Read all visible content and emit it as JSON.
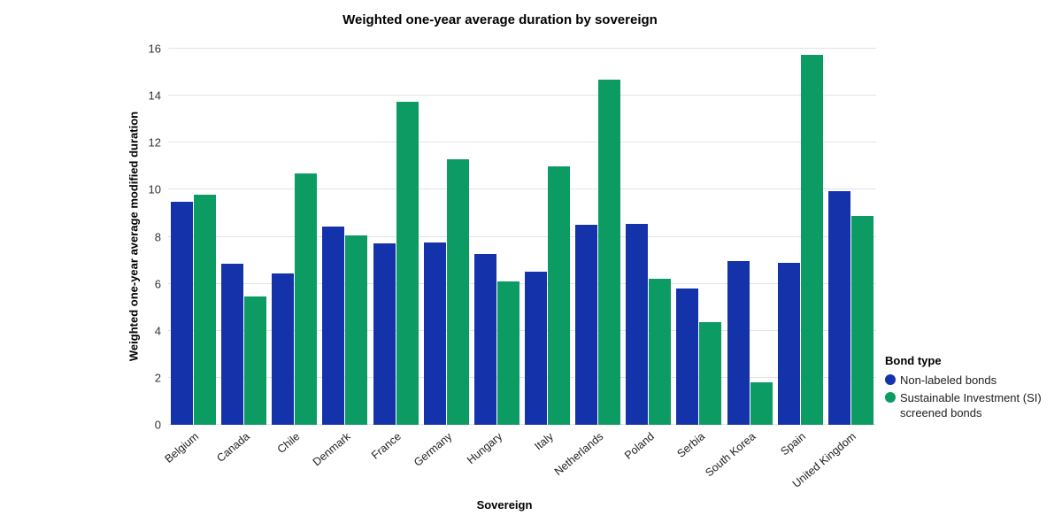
{
  "title": "Weighted one-year average duration by sovereign",
  "legend": {
    "title": "Bond type"
  },
  "colors": {
    "non_labeled_blue": "#1433aa",
    "si_screened_green": "#0c9b62",
    "gridline": "#e2e2e2",
    "text": "#212121"
  },
  "chart_data": {
    "type": "bar",
    "title": "Weighted one-year average duration by sovereign",
    "xlabel": "Sovereign",
    "ylabel": "Weighted one-year average modified duration",
    "ylim": [
      0,
      16
    ],
    "yticks": [
      0,
      2,
      4,
      6,
      8,
      10,
      12,
      14,
      16
    ],
    "grid": true,
    "legend_position": "right",
    "legend_title": "Bond type",
    "categories": [
      "Belgium",
      "Canada",
      "Chile",
      "Denmark",
      "France",
      "Germany",
      "Hungary",
      "Italy",
      "Netherlands",
      "Poland",
      "Serbia",
      "South Korea",
      "Spain",
      "United Kingdom"
    ],
    "series": [
      {
        "name": "Non-labeled bonds",
        "color": "#1433aa",
        "values": [
          9.5,
          6.85,
          6.45,
          8.45,
          7.7,
          7.75,
          7.25,
          6.5,
          8.5,
          8.55,
          5.8,
          6.95,
          6.9,
          9.95
        ]
      },
      {
        "name": "Sustainable Investment (SI) screened bonds",
        "color": "#0c9b62",
        "values": [
          9.8,
          5.45,
          10.7,
          8.05,
          13.75,
          11.3,
          6.1,
          11.0,
          14.7,
          6.2,
          4.35,
          1.8,
          15.75,
          8.9
        ]
      }
    ]
  }
}
